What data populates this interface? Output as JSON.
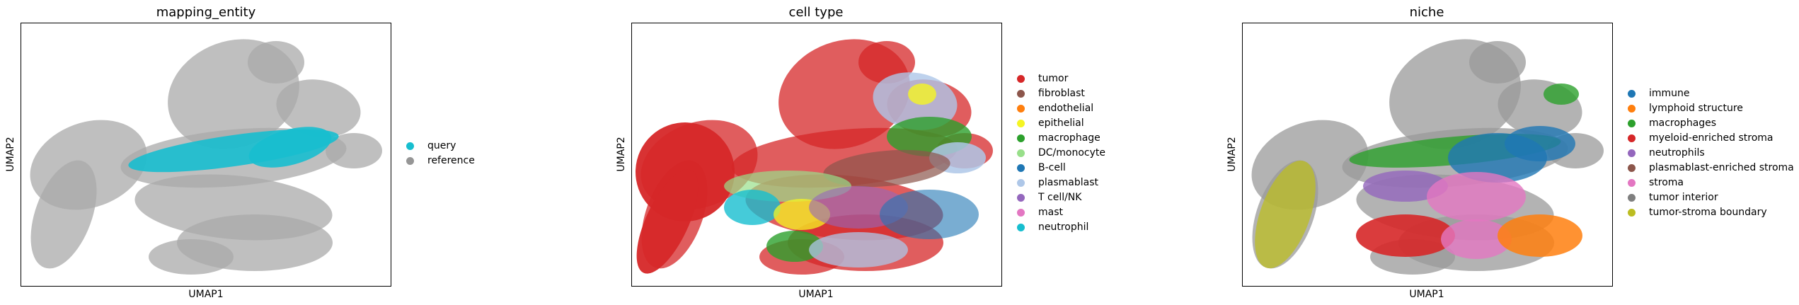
{
  "chart_data": [
    {
      "type": "scatter",
      "title": "mapping_entity",
      "xlabel": "UMAP1",
      "ylabel": "UMAP2",
      "grid": false,
      "legend_placement": "right",
      "series": [
        {
          "name": "query",
          "color": "#17becf"
        },
        {
          "name": "reference",
          "color": "#969696"
        }
      ]
    },
    {
      "type": "scatter",
      "title": "cell type",
      "xlabel": "UMAP1",
      "ylabel": "UMAP2",
      "grid": false,
      "legend_placement": "right",
      "series": [
        {
          "name": "tumor",
          "color": "#d62728"
        },
        {
          "name": "fibroblast",
          "color": "#8c564b"
        },
        {
          "name": "endothelial",
          "color": "#ff7f0e"
        },
        {
          "name": "epithelial",
          "color": "#f5f523"
        },
        {
          "name": "macrophage",
          "color": "#2ca02c"
        },
        {
          "name": "DC/monocyte",
          "color": "#98df8a"
        },
        {
          "name": "B-cell",
          "color": "#1f77b4"
        },
        {
          "name": "plasmablast",
          "color": "#aec7e8"
        },
        {
          "name": "T cell/NK",
          "color": "#9467bd"
        },
        {
          "name": "mast",
          "color": "#e377c2"
        },
        {
          "name": "neutrophil",
          "color": "#17becf"
        }
      ]
    },
    {
      "type": "scatter",
      "title": "niche",
      "xlabel": "UMAP1",
      "ylabel": "UMAP2",
      "grid": false,
      "legend_placement": "right",
      "series": [
        {
          "name": "immune",
          "color": "#1f77b4"
        },
        {
          "name": "lymphoid structure",
          "color": "#ff7f0e"
        },
        {
          "name": "macrophages",
          "color": "#2ca02c"
        },
        {
          "name": "myeloid-enriched stroma",
          "color": "#d62728"
        },
        {
          "name": "neutrophils",
          "color": "#9467bd"
        },
        {
          "name": "plasmablast-enriched stroma",
          "color": "#8c564b"
        },
        {
          "name": "stroma",
          "color": "#e377c2"
        },
        {
          "name": "tumor interior",
          "color": "#7f7f7f"
        },
        {
          "name": "tumor-stroma boundary",
          "color": "#bcbd22"
        }
      ]
    }
  ]
}
